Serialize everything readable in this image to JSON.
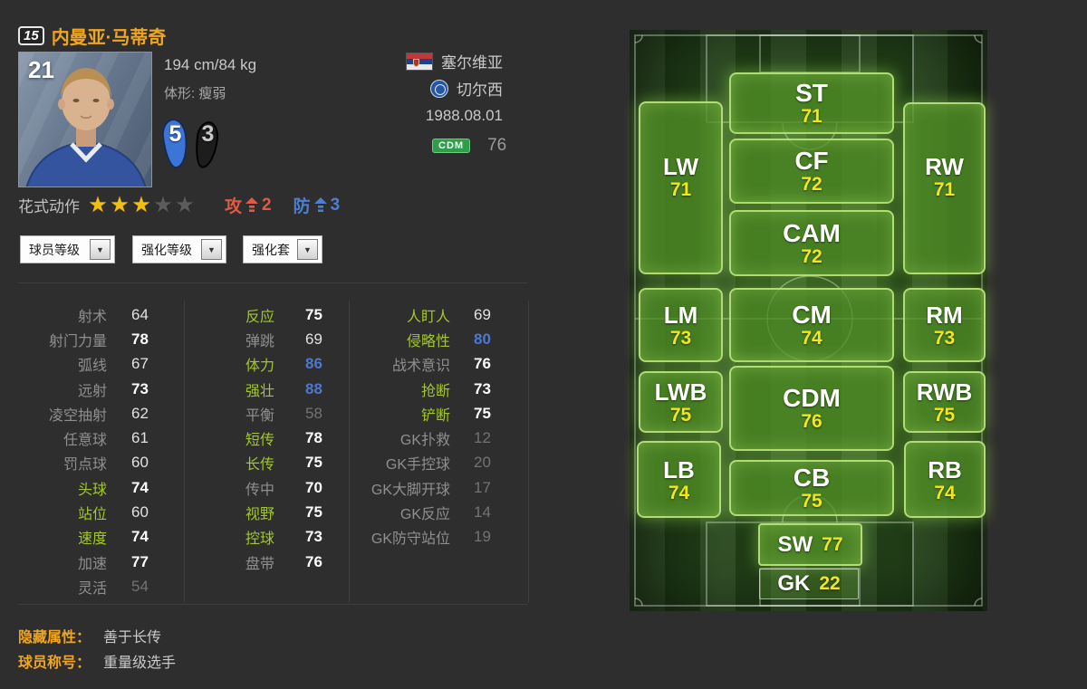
{
  "player": {
    "level": "15",
    "name": "内曼亚·马蒂奇",
    "jersey_number": "21",
    "height_weight": "194 cm/84 kg",
    "body_type": "体形: 瘦弱",
    "nationality": "塞尔维亚",
    "club": "切尔西",
    "birthdate": "1988.08.01",
    "position": "CDM",
    "overall": "76",
    "left_foot": "5",
    "right_foot": "3"
  },
  "skills": {
    "label": "花式动作",
    "stars_filled": 3,
    "stars_total": 5,
    "attack_label": "攻",
    "attack_value": "2",
    "defense_label": "防",
    "defense_value": "3"
  },
  "dropdowns": [
    {
      "label": "球员等级"
    },
    {
      "label": "强化等级"
    },
    {
      "label": "强化套"
    }
  ],
  "stats": {
    "columns": [
      {
        "rows": [
          {
            "label": "射术",
            "value": "64",
            "label_style": "gray",
            "value_style": "normal"
          },
          {
            "label": "射门力量",
            "value": "78",
            "label_style": "gray",
            "value_style": "bold"
          },
          {
            "label": "弧线",
            "value": "67",
            "label_style": "gray",
            "value_style": "normal"
          },
          {
            "label": "远射",
            "value": "73",
            "label_style": "gray",
            "value_style": "bold"
          },
          {
            "label": "凌空抽射",
            "value": "62",
            "label_style": "gray",
            "value_style": "normal"
          },
          {
            "label": "任意球",
            "value": "61",
            "label_style": "gray",
            "value_style": "normal"
          },
          {
            "label": "罚点球",
            "value": "60",
            "label_style": "gray",
            "value_style": "normal"
          },
          {
            "label": "头球",
            "value": "74",
            "label_style": "green",
            "value_style": "bold"
          },
          {
            "label": "站位",
            "value": "60",
            "label_style": "green",
            "value_style": "normal"
          },
          {
            "label": "速度",
            "value": "74",
            "label_style": "green",
            "value_style": "bold"
          },
          {
            "label": "加速",
            "value": "77",
            "label_style": "gray",
            "value_style": "bold"
          },
          {
            "label": "灵活",
            "value": "54",
            "label_style": "gray",
            "value_style": "dim"
          }
        ]
      },
      {
        "rows": [
          {
            "label": "反应",
            "value": "75",
            "label_style": "green",
            "value_style": "bold"
          },
          {
            "label": "弹跳",
            "value": "69",
            "label_style": "gray",
            "value_style": "normal"
          },
          {
            "label": "体力",
            "value": "86",
            "label_style": "green",
            "value_style": "blue"
          },
          {
            "label": "强壮",
            "value": "88",
            "label_style": "green",
            "value_style": "blue"
          },
          {
            "label": "平衡",
            "value": "58",
            "label_style": "gray",
            "value_style": "dim"
          },
          {
            "label": "短传",
            "value": "78",
            "label_style": "green",
            "value_style": "bold"
          },
          {
            "label": "长传",
            "value": "75",
            "label_style": "green",
            "value_style": "bold"
          },
          {
            "label": "传中",
            "value": "70",
            "label_style": "gray",
            "value_style": "bold"
          },
          {
            "label": "视野",
            "value": "75",
            "label_style": "green",
            "value_style": "bold"
          },
          {
            "label": "控球",
            "value": "73",
            "label_style": "green",
            "value_style": "bold"
          },
          {
            "label": "盘带",
            "value": "76",
            "label_style": "gray",
            "value_style": "bold"
          }
        ]
      },
      {
        "rows": [
          {
            "label": "人盯人",
            "value": "69",
            "label_style": "green",
            "value_style": "normal"
          },
          {
            "label": "侵略性",
            "value": "80",
            "label_style": "green",
            "value_style": "blue"
          },
          {
            "label": "战术意识",
            "value": "76",
            "label_style": "gray",
            "value_style": "bold"
          },
          {
            "label": "抢断",
            "value": "73",
            "label_style": "green",
            "value_style": "bold"
          },
          {
            "label": "铲断",
            "value": "75",
            "label_style": "green",
            "value_style": "bold"
          },
          {
            "label": "GK扑救",
            "value": "12",
            "label_style": "gray",
            "value_style": "dim"
          },
          {
            "label": "GK手控球",
            "value": "20",
            "label_style": "gray",
            "value_style": "dim"
          },
          {
            "label": "GK大脚开球",
            "value": "17",
            "label_style": "gray",
            "value_style": "dim"
          },
          {
            "label": "GK反应",
            "value": "14",
            "label_style": "gray",
            "value_style": "dim"
          },
          {
            "label": "GK防守站位",
            "value": "19",
            "label_style": "gray",
            "value_style": "dim"
          }
        ]
      }
    ]
  },
  "footer": {
    "hidden_attr_label": "隐藏属性：",
    "hidden_attr_value": "善于长传",
    "title_label": "球员称号：",
    "title_value": "重量级选手"
  },
  "pitch": {
    "positions": [
      {
        "code": "ST",
        "rating": "71"
      },
      {
        "code": "LW",
        "rating": "71"
      },
      {
        "code": "CF",
        "rating": "72"
      },
      {
        "code": "RW",
        "rating": "71"
      },
      {
        "code": "CAM",
        "rating": "72"
      },
      {
        "code": "LM",
        "rating": "73"
      },
      {
        "code": "CM",
        "rating": "74"
      },
      {
        "code": "RM",
        "rating": "73"
      },
      {
        "code": "LWB",
        "rating": "75"
      },
      {
        "code": "CDM",
        "rating": "76"
      },
      {
        "code": "RWB",
        "rating": "75"
      },
      {
        "code": "LB",
        "rating": "74"
      },
      {
        "code": "CB",
        "rating": "75"
      },
      {
        "code": "RB",
        "rating": "74"
      },
      {
        "code": "SW",
        "rating": "77"
      },
      {
        "code": "GK",
        "rating": "22"
      }
    ]
  },
  "colors": {
    "accent_gold": "#f0a51f",
    "green_label": "#a2c62e",
    "blue_value": "#4a78d4",
    "attack_red": "#e05a45",
    "defense_blue": "#4d7fd0",
    "pitch_rating_yellow": "#f2e71c",
    "position_badge_green": "#2e9e4a"
  }
}
